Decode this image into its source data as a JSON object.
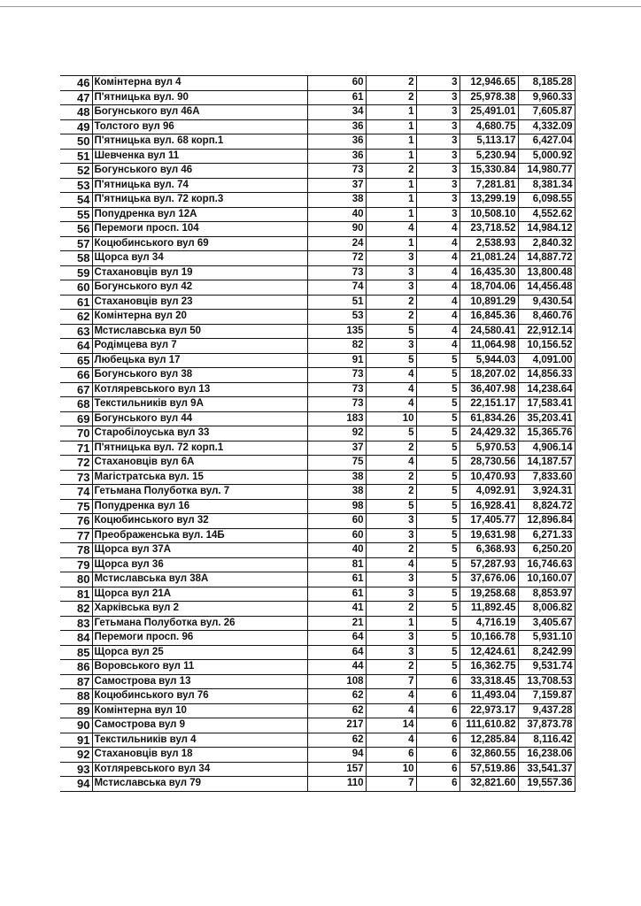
{
  "table": {
    "rows": [
      [
        "46",
        "Комінтерна вул 4",
        "60",
        "2",
        "3",
        "12,946.65",
        "8,185.28"
      ],
      [
        "47",
        "П'ятницька вул. 90",
        "61",
        "2",
        "3",
        "25,978.38",
        "9,960.33"
      ],
      [
        "48",
        "Богунського вул 46А",
        "34",
        "1",
        "3",
        "25,491.01",
        "7,605.87"
      ],
      [
        "49",
        "Толстого вул 96",
        "36",
        "1",
        "3",
        "4,680.75",
        "4,332.09"
      ],
      [
        "50",
        "П'ятницька вул. 68 корп.1",
        "36",
        "1",
        "3",
        "5,113.17",
        "6,427.04"
      ],
      [
        "51",
        "Шевченка вул 11",
        "36",
        "1",
        "3",
        "5,230.94",
        "5,000.92"
      ],
      [
        "52",
        "Богунського вул 46",
        "73",
        "2",
        "3",
        "15,330.84",
        "14,980.77"
      ],
      [
        "53",
        "П'ятницька вул. 74",
        "37",
        "1",
        "3",
        "7,281.81",
        "8,381.34"
      ],
      [
        "54",
        "П'ятницька вул. 72 корп.3",
        "38",
        "1",
        "3",
        "13,299.19",
        "6,098.55"
      ],
      [
        "55",
        "Попудренка вул 12А",
        "40",
        "1",
        "3",
        "10,508.10",
        "4,552.62"
      ],
      [
        "56",
        "Перемоги просп. 104",
        "90",
        "4",
        "4",
        "23,718.52",
        "14,984.12"
      ],
      [
        "57",
        "Коцюбинського вул 69",
        "24",
        "1",
        "4",
        "2,538.93",
        "2,840.32"
      ],
      [
        "58",
        "Щорса вул 34",
        "72",
        "3",
        "4",
        "21,081.24",
        "14,887.72"
      ],
      [
        "59",
        "Стахановців вул 19",
        "73",
        "3",
        "4",
        "16,435.30",
        "13,800.48"
      ],
      [
        "60",
        "Богунського вул 42",
        "74",
        "3",
        "4",
        "18,704.06",
        "14,456.48"
      ],
      [
        "61",
        "Стахановців вул 23",
        "51",
        "2",
        "4",
        "10,891.29",
        "9,430.54"
      ],
      [
        "62",
        "Комінтерна вул 20",
        "53",
        "2",
        "4",
        "16,845.36",
        "8,460.76"
      ],
      [
        "63",
        "Мстиславська вул 50",
        "135",
        "5",
        "4",
        "24,580.41",
        "22,912.14"
      ],
      [
        "64",
        "Родімцева вул 7",
        "82",
        "3",
        "4",
        "11,064.98",
        "10,156.52"
      ],
      [
        "65",
        "Любецька вул 17",
        "91",
        "5",
        "5",
        "5,944.03",
        "4,091.00"
      ],
      [
        "66",
        "Богунського вул 38",
        "73",
        "4",
        "5",
        "18,207.02",
        "14,856.33"
      ],
      [
        "67",
        "Котляревського вул 13",
        "73",
        "4",
        "5",
        "36,407.98",
        "14,238.64"
      ],
      [
        "68",
        "Текстильників вул 9А",
        "73",
        "4",
        "5",
        "22,151.17",
        "17,583.41"
      ],
      [
        "69",
        "Богунського вул 44",
        "183",
        "10",
        "5",
        "61,834.26",
        "35,203.41"
      ],
      [
        "70",
        "Старобілоуська вул 33",
        "92",
        "5",
        "5",
        "24,429.32",
        "15,365.76"
      ],
      [
        "71",
        "П'ятницька вул. 72 корп.1",
        "37",
        "2",
        "5",
        "5,970.53",
        "4,906.14"
      ],
      [
        "72",
        "Стахановців вул 6А",
        "75",
        "4",
        "5",
        "28,730.56",
        "14,187.57"
      ],
      [
        "73",
        "Магістратська вул. 15",
        "38",
        "2",
        "5",
        "10,470.93",
        "7,833.60"
      ],
      [
        "74",
        "Гетьмана Полуботка вул. 7",
        "38",
        "2",
        "5",
        "4,092.91",
        "3,924.31"
      ],
      [
        "75",
        "Попудренка вул 16",
        "98",
        "5",
        "5",
        "16,928.41",
        "8,824.72"
      ],
      [
        "76",
        "Коцюбинського вул 32",
        "60",
        "3",
        "5",
        "17,405.77",
        "12,896.84"
      ],
      [
        "77",
        "Преображенська вул. 14Б",
        "60",
        "3",
        "5",
        "19,631.98",
        "6,271.33"
      ],
      [
        "78",
        "Щорса вул 37А",
        "40",
        "2",
        "5",
        "6,368.93",
        "6,250.20"
      ],
      [
        "79",
        "Щорса вул 36",
        "81",
        "4",
        "5",
        "57,287.93",
        "16,746.63"
      ],
      [
        "80",
        "Мстиславська вул 38А",
        "61",
        "3",
        "5",
        "37,676.06",
        "10,160.07"
      ],
      [
        "81",
        "Щорса вул 21А",
        "61",
        "3",
        "5",
        "19,258.68",
        "8,853.97"
      ],
      [
        "82",
        "Харківська вул 2",
        "41",
        "2",
        "5",
        "11,892.45",
        "8,006.82"
      ],
      [
        "83",
        "Гетьмана Полуботка вул. 26",
        "21",
        "1",
        "5",
        "4,716.19",
        "3,405.67"
      ],
      [
        "84",
        "Перемоги просп. 96",
        "64",
        "3",
        "5",
        "10,166.78",
        "5,931.10"
      ],
      [
        "85",
        "Щорса вул 25",
        "64",
        "3",
        "5",
        "12,424.61",
        "8,242.99"
      ],
      [
        "86",
        "Воровського вул 11",
        "44",
        "2",
        "5",
        "16,362.75",
        "9,531.74"
      ],
      [
        "87",
        "Самострова вул 13",
        "108",
        "7",
        "6",
        "33,318.45",
        "13,708.53"
      ],
      [
        "88",
        "Коцюбинського вул 76",
        "62",
        "4",
        "6",
        "11,493.04",
        "7,159.87"
      ],
      [
        "89",
        "Комінтерна вул 10",
        "62",
        "4",
        "6",
        "22,973.17",
        "9,437.28"
      ],
      [
        "90",
        "Самострова вул 9",
        "217",
        "14",
        "6",
        "111,610.82",
        "37,873.78"
      ],
      [
        "91",
        "Текстильників вул 4",
        "62",
        "4",
        "6",
        "12,285.84",
        "8,116.42"
      ],
      [
        "92",
        "Стахановців вул 18",
        "94",
        "6",
        "6",
        "32,860.55",
        "16,238.06"
      ],
      [
        "93",
        "Котляревського вул 34",
        "157",
        "10",
        "6",
        "57,519.86",
        "33,541.37"
      ],
      [
        "94",
        "Мстиславська вул 79",
        "110",
        "7",
        "6",
        "32,821.60",
        "19,557.36"
      ]
    ]
  }
}
